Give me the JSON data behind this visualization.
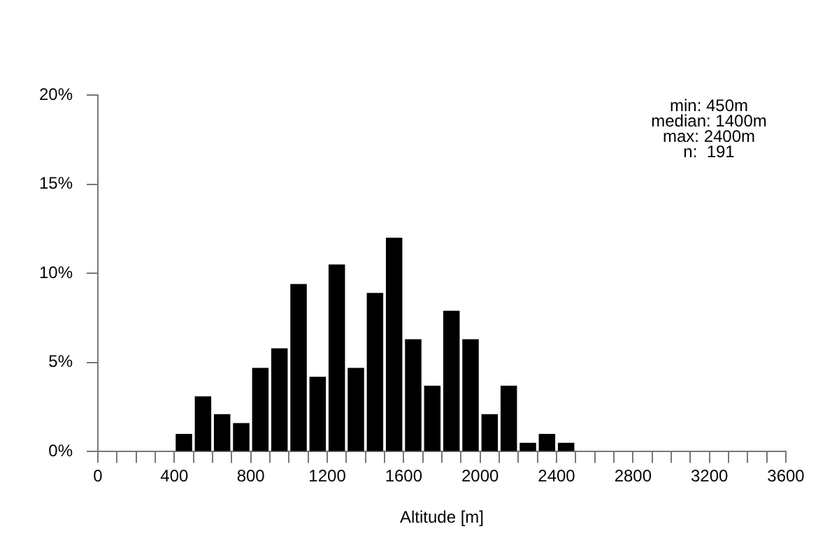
{
  "chart_data": {
    "type": "histogram",
    "xlabel": "Altitude [m]",
    "bins": [
      400,
      500,
      600,
      700,
      800,
      900,
      1000,
      1100,
      1200,
      1300,
      1400,
      1500,
      1600,
      1700,
      1800,
      1900,
      2000,
      2100,
      2200,
      2300,
      2400,
      2500
    ],
    "values": [
      1.0,
      3.1,
      2.1,
      1.6,
      4.7,
      5.8,
      9.4,
      4.2,
      10.5,
      4.7,
      8.9,
      12.0,
      6.3,
      3.7,
      7.9,
      6.3,
      2.1,
      3.7,
      0.5,
      1.0,
      0.5
    ],
    "color": "#000000",
    "xlim": [
      0,
      3600
    ],
    "xticks": [
      0,
      {
        "value": 100,
        "label": null
      },
      {
        "value": 200,
        "label": null
      },
      {
        "value": 300,
        "label": null
      },
      400,
      {
        "value": 500,
        "label": null
      },
      {
        "value": 600,
        "label": null
      },
      {
        "value": 700,
        "label": null
      },
      800,
      {
        "value": 900,
        "label": null
      },
      {
        "value": 1000,
        "label": null
      },
      {
        "value": 1100,
        "label": null
      },
      1200,
      {
        "value": 1300,
        "label": null
      },
      {
        "value": 1400,
        "label": null
      },
      {
        "value": 1500,
        "label": null
      },
      1600,
      {
        "value": 1700,
        "label": null
      },
      {
        "value": 1800,
        "label": null
      },
      {
        "value": 1900,
        "label": null
      },
      2000,
      {
        "value": 2100,
        "label": null
      },
      {
        "value": 2200,
        "label": null
      },
      {
        "value": 2300,
        "label": null
      },
      2400,
      {
        "value": 2500,
        "label": null
      },
      {
        "value": 2600,
        "label": null
      },
      {
        "value": 2700,
        "label": null
      },
      2800,
      {
        "value": 2900,
        "label": null
      },
      {
        "value": 3000,
        "label": null
      },
      {
        "value": 3100,
        "label": null
      },
      3200,
      {
        "value": 3300,
        "label": null
      },
      {
        "value": 3400,
        "label": null
      },
      {
        "value": 3500,
        "label": null
      },
      3600
    ],
    "ylim": [
      0,
      20
    ],
    "yticks": [
      {
        "value": 0,
        "label": "0%"
      },
      {
        "value": 5,
        "label": "5%"
      },
      {
        "value": 10,
        "label": "10%"
      },
      {
        "value": 15,
        "label": "15%"
      },
      {
        "value": 20,
        "label": "20%"
      }
    ],
    "grid": false,
    "legend": false,
    "annotations": [
      "min: 450m",
      "median: 1400m",
      "max: 2400m",
      "n:  191"
    ]
  }
}
